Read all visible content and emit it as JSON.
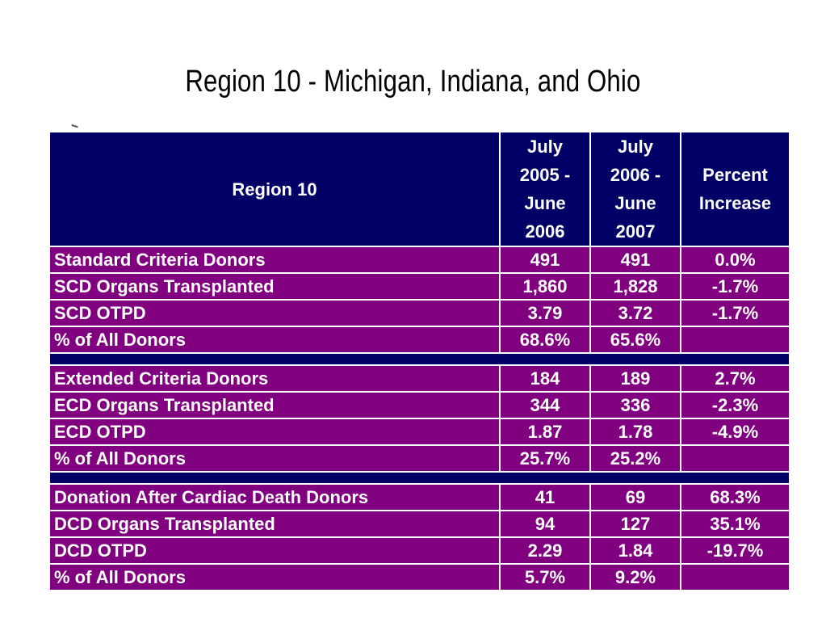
{
  "title": "Region 10 - Michigan, Indiana, and Ohio",
  "colors": {
    "header_bg": "#000066",
    "row_bg": "#800080",
    "text": "#ffffff"
  },
  "table": {
    "headers": {
      "region": "Region 10",
      "period1": [
        "July",
        "2005 -",
        "June",
        "2006"
      ],
      "period2": [
        "July",
        "2006 -",
        "June",
        "2007"
      ],
      "change": [
        "Percent",
        "Increase"
      ]
    },
    "sections": [
      {
        "rows": [
          [
            "Standard Criteria Donors",
            "491",
            "491",
            "0.0%"
          ],
          [
            "SCD Organs Transplanted",
            "1,860",
            "1,828",
            "-1.7%"
          ],
          [
            "SCD OTPD",
            "3.79",
            "3.72",
            "-1.7%"
          ],
          [
            "% of All Donors",
            "68.6%",
            "65.6%",
            ""
          ]
        ]
      },
      {
        "rows": [
          [
            "Extended Criteria Donors",
            "184",
            "189",
            "2.7%"
          ],
          [
            "ECD Organs Transplanted",
            "344",
            "336",
            "-2.3%"
          ],
          [
            "ECD OTPD",
            "1.87",
            "1.78",
            "-4.9%"
          ],
          [
            "% of All Donors",
            "25.7%",
            "25.2%",
            ""
          ]
        ]
      },
      {
        "rows": [
          [
            "Donation After Cardiac Death Donors",
            "41",
            "69",
            "68.3%"
          ],
          [
            "DCD Organs Transplanted",
            "94",
            "127",
            "35.1%"
          ],
          [
            "DCD OTPD",
            "2.29",
            "1.84",
            "-19.7%"
          ],
          [
            "% of All Donors",
            "5.7%",
            "9.2%",
            ""
          ]
        ]
      }
    ]
  }
}
